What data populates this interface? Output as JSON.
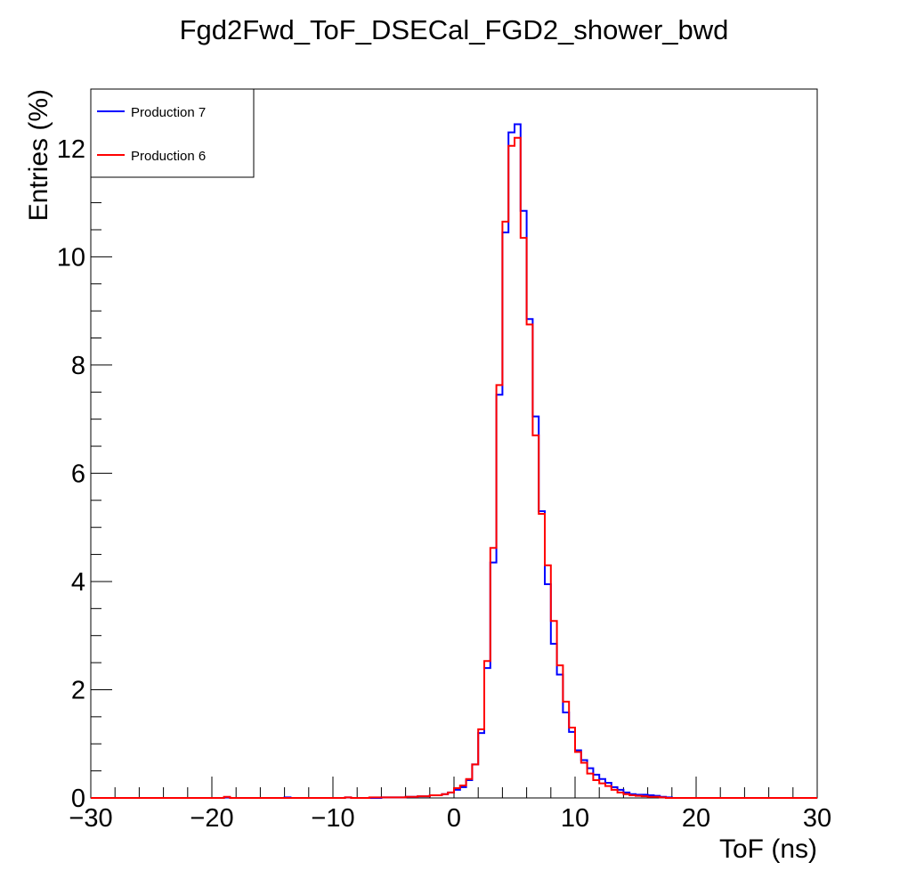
{
  "chart_data": {
    "type": "line",
    "style": "step-histogram",
    "title": "Fgd2Fwd_ToF_DSECal_FGD2_shower_bwd",
    "xlabel": "ToF (ns)",
    "ylabel": "Entries (%)",
    "xlim": [
      -30,
      30
    ],
    "ylim": [
      0,
      13.1
    ],
    "x_ticks": [
      -30,
      -20,
      -10,
      0,
      10,
      20,
      30
    ],
    "y_ticks": [
      0,
      2,
      4,
      6,
      8,
      10,
      12
    ],
    "x_tick_labels": [
      "−30",
      "−20",
      "−10",
      "0",
      "10",
      "20",
      "30"
    ],
    "y_tick_labels": [
      "0",
      "2",
      "4",
      "6",
      "8",
      "10",
      "12"
    ],
    "bin_width": 0.5,
    "legend_position": "top-left",
    "series": [
      {
        "name": "Production 7",
        "color": "#0000ff",
        "bins": [
          [
            -19.0,
            0.01
          ],
          [
            -18.5,
            0.0
          ],
          [
            -14.0,
            0.01
          ],
          [
            -13.5,
            0.0
          ],
          [
            -9.0,
            0.01
          ],
          [
            -8.5,
            0.0
          ],
          [
            -6.0,
            0.01
          ],
          [
            -4.0,
            0.02
          ],
          [
            -3.0,
            0.03
          ],
          [
            -2.0,
            0.05
          ],
          [
            -1.0,
            0.07
          ],
          [
            -0.5,
            0.1
          ],
          [
            0.0,
            0.15
          ],
          [
            0.5,
            0.2
          ],
          [
            1.0,
            0.33
          ],
          [
            1.5,
            0.62
          ],
          [
            2.0,
            1.2
          ],
          [
            2.5,
            2.4
          ],
          [
            3.0,
            4.35
          ],
          [
            3.5,
            7.45
          ],
          [
            4.0,
            10.45
          ],
          [
            4.5,
            12.3
          ],
          [
            5.0,
            12.45
          ],
          [
            5.5,
            10.85
          ],
          [
            6.0,
            8.85
          ],
          [
            6.5,
            7.05
          ],
          [
            7.0,
            5.3
          ],
          [
            7.5,
            3.95
          ],
          [
            8.0,
            2.85
          ],
          [
            8.5,
            2.28
          ],
          [
            9.0,
            1.58
          ],
          [
            9.5,
            1.22
          ],
          [
            10.0,
            0.88
          ],
          [
            10.5,
            0.7
          ],
          [
            11.0,
            0.55
          ],
          [
            11.5,
            0.43
          ],
          [
            12.0,
            0.35
          ],
          [
            12.5,
            0.28
          ],
          [
            13.0,
            0.2
          ],
          [
            13.5,
            0.15
          ],
          [
            14.0,
            0.1
          ],
          [
            14.5,
            0.07
          ],
          [
            15.0,
            0.06
          ],
          [
            16.0,
            0.05
          ],
          [
            16.5,
            0.04
          ],
          [
            17.0,
            0.02
          ],
          [
            17.5,
            0.01
          ],
          [
            18.0,
            0.0
          ]
        ]
      },
      {
        "name": "Production 6",
        "color": "#ff0000",
        "bins": [
          [
            -19.0,
            0.02
          ],
          [
            -18.5,
            0.0
          ],
          [
            -9.0,
            0.01
          ],
          [
            -8.5,
            0.0
          ],
          [
            -7.0,
            0.01
          ],
          [
            -6.0,
            0.01
          ],
          [
            -4.0,
            0.02
          ],
          [
            -3.0,
            0.03
          ],
          [
            -2.0,
            0.05
          ],
          [
            -1.0,
            0.07
          ],
          [
            -0.5,
            0.1
          ],
          [
            0.0,
            0.18
          ],
          [
            0.5,
            0.23
          ],
          [
            1.0,
            0.35
          ],
          [
            1.5,
            0.62
          ],
          [
            2.0,
            1.27
          ],
          [
            2.5,
            2.53
          ],
          [
            3.0,
            4.62
          ],
          [
            3.5,
            7.63
          ],
          [
            4.0,
            10.65
          ],
          [
            4.5,
            12.05
          ],
          [
            5.0,
            12.2
          ],
          [
            5.5,
            10.35
          ],
          [
            6.0,
            8.75
          ],
          [
            6.5,
            6.7
          ],
          [
            7.0,
            5.25
          ],
          [
            7.5,
            4.3
          ],
          [
            8.0,
            3.27
          ],
          [
            8.5,
            2.45
          ],
          [
            9.0,
            1.78
          ],
          [
            9.5,
            1.3
          ],
          [
            10.0,
            0.85
          ],
          [
            10.5,
            0.65
          ],
          [
            11.0,
            0.45
          ],
          [
            11.5,
            0.33
          ],
          [
            12.0,
            0.27
          ],
          [
            12.5,
            0.22
          ],
          [
            13.0,
            0.15
          ],
          [
            13.5,
            0.1
          ],
          [
            14.0,
            0.07
          ],
          [
            14.5,
            0.05
          ],
          [
            15.0,
            0.04
          ],
          [
            15.5,
            0.03
          ],
          [
            16.0,
            0.02
          ],
          [
            17.0,
            0.01
          ],
          [
            17.5,
            0.0
          ]
        ]
      }
    ]
  }
}
